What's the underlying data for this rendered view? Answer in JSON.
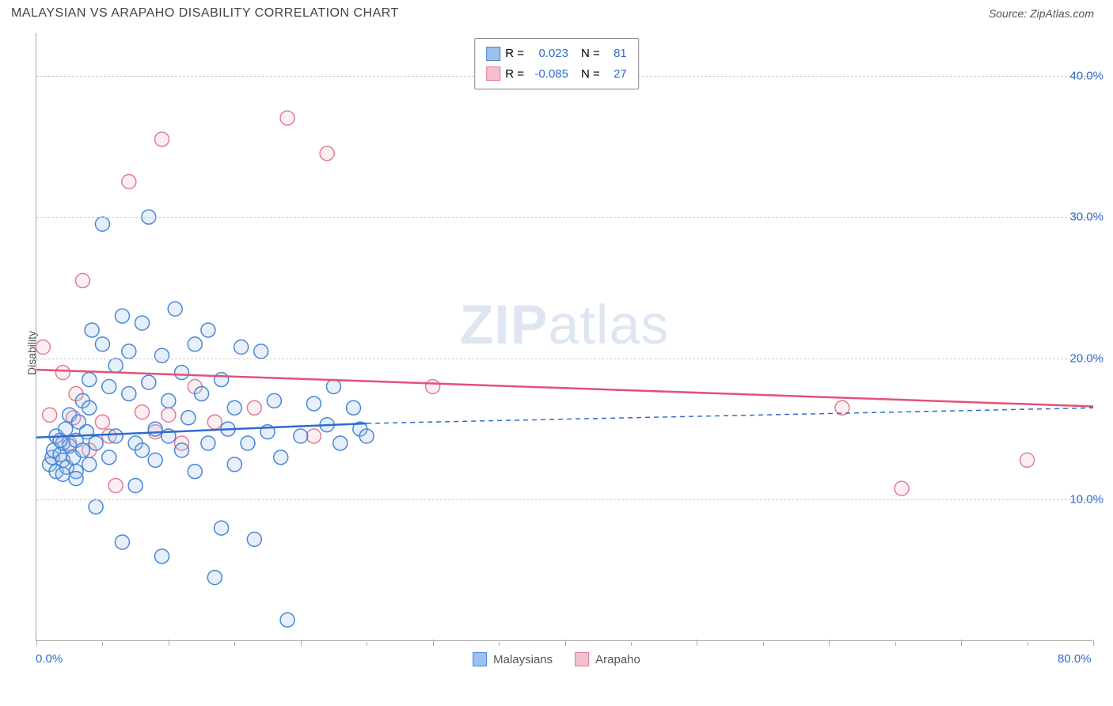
{
  "header": {
    "title": "MALAYSIAN VS ARAPAHO DISABILITY CORRELATION CHART",
    "source_label": "Source: ZipAtlas.com"
  },
  "watermark": {
    "zip": "ZIP",
    "atlas": "atlas"
  },
  "chart": {
    "type": "scatter",
    "background_color": "#ffffff",
    "grid_color": "#cccccc",
    "axis_color": "#aaaaaa",
    "ylabel": "Disability",
    "ylabel_fontsize": 14,
    "xlim": [
      0,
      80
    ],
    "ylim": [
      0,
      43
    ],
    "x_ticks_major": [
      0,
      10,
      20,
      30,
      40,
      50,
      60,
      70,
      80
    ],
    "x_ticks_minor": [
      5,
      15,
      25,
      35,
      45,
      55,
      65,
      75
    ],
    "x_tick_labels": [
      {
        "value": 0,
        "label": "0.0%",
        "color": "#2d6bd1"
      },
      {
        "value": 80,
        "label": "80.0%",
        "color": "#2d6bd1"
      }
    ],
    "y_gridlines": [
      10,
      20,
      30,
      40
    ],
    "y_tick_labels": [
      {
        "value": 10,
        "label": "10.0%",
        "color": "#2d6bd1"
      },
      {
        "value": 20,
        "label": "20.0%",
        "color": "#2d6bd1"
      },
      {
        "value": 30,
        "label": "30.0%",
        "color": "#2d6bd1"
      },
      {
        "value": 40,
        "label": "40.0%",
        "color": "#2d6bd1"
      }
    ],
    "marker_radius": 9,
    "marker_stroke_width": 1.5,
    "marker_fill_opacity": 0.25,
    "series": {
      "blue": {
        "label": "Malaysians",
        "fill": "#9cc1ec",
        "stroke": "#4a87d6",
        "R": "0.023",
        "N": "81",
        "trend": {
          "solid": {
            "x1": 0,
            "y1": 14.4,
            "x2": 25,
            "y2": 15.4
          },
          "dashed": {
            "x1": 25,
            "y1": 15.4,
            "x2": 80,
            "y2": 16.5
          },
          "color": "#2d6bd1",
          "width": 2.5
        },
        "points": [
          [
            1.0,
            12.5
          ],
          [
            1.2,
            13.0
          ],
          [
            1.3,
            13.5
          ],
          [
            1.5,
            12.0
          ],
          [
            1.5,
            14.5
          ],
          [
            1.8,
            13.2
          ],
          [
            2.0,
            12.8
          ],
          [
            2.0,
            14.0
          ],
          [
            2.2,
            15.0
          ],
          [
            2.3,
            12.3
          ],
          [
            2.5,
            13.8
          ],
          [
            2.5,
            16.0
          ],
          [
            2.8,
            13.0
          ],
          [
            3.0,
            14.2
          ],
          [
            3.0,
            12.0
          ],
          [
            3.2,
            15.5
          ],
          [
            3.5,
            17.0
          ],
          [
            3.5,
            13.5
          ],
          [
            3.8,
            14.8
          ],
          [
            4.0,
            18.5
          ],
          [
            4.0,
            12.5
          ],
          [
            4.2,
            22.0
          ],
          [
            4.5,
            14.0
          ],
          [
            4.5,
            9.5
          ],
          [
            5.0,
            21.0
          ],
          [
            5.0,
            29.5
          ],
          [
            5.5,
            13.0
          ],
          [
            5.5,
            18.0
          ],
          [
            6.0,
            14.5
          ],
          [
            6.0,
            19.5
          ],
          [
            6.5,
            23.0
          ],
          [
            6.5,
            7.0
          ],
          [
            7.0,
            17.5
          ],
          [
            7.0,
            20.5
          ],
          [
            7.5,
            14.0
          ],
          [
            7.5,
            11.0
          ],
          [
            8.0,
            22.5
          ],
          [
            8.0,
            13.5
          ],
          [
            8.5,
            18.3
          ],
          [
            8.5,
            30.0
          ],
          [
            9.0,
            15.0
          ],
          [
            9.0,
            12.8
          ],
          [
            9.5,
            20.2
          ],
          [
            9.5,
            6.0
          ],
          [
            10.0,
            14.5
          ],
          [
            10.0,
            17.0
          ],
          [
            10.5,
            23.5
          ],
          [
            11.0,
            13.5
          ],
          [
            11.0,
            19.0
          ],
          [
            11.5,
            15.8
          ],
          [
            12.0,
            21.0
          ],
          [
            12.0,
            12.0
          ],
          [
            12.5,
            17.5
          ],
          [
            13.0,
            14.0
          ],
          [
            13.0,
            22.0
          ],
          [
            13.5,
            4.5
          ],
          [
            14.0,
            18.5
          ],
          [
            14.0,
            8.0
          ],
          [
            14.5,
            15.0
          ],
          [
            15.0,
            16.5
          ],
          [
            15.0,
            12.5
          ],
          [
            15.5,
            20.8
          ],
          [
            16.0,
            14.0
          ],
          [
            16.5,
            7.2
          ],
          [
            17.0,
            20.5
          ],
          [
            17.5,
            14.8
          ],
          [
            18.0,
            17.0
          ],
          [
            18.5,
            13.0
          ],
          [
            19.0,
            1.5
          ],
          [
            20.0,
            14.5
          ],
          [
            21.0,
            16.8
          ],
          [
            22.0,
            15.3
          ],
          [
            22.5,
            18.0
          ],
          [
            23.0,
            14.0
          ],
          [
            24.0,
            16.5
          ],
          [
            24.5,
            15.0
          ],
          [
            25.0,
            14.5
          ],
          [
            2.0,
            11.8
          ],
          [
            3.0,
            11.5
          ],
          [
            4.0,
            16.5
          ],
          [
            1.8,
            14.2
          ]
        ]
      },
      "pink": {
        "label": "Arapaho",
        "fill": "#f5c0cd",
        "stroke": "#e37b96",
        "R": "-0.085",
        "N": "27",
        "trend": {
          "solid": {
            "x1": 0,
            "y1": 19.2,
            "x2": 80,
            "y2": 16.6
          },
          "color": "#e35177",
          "width": 2.5
        },
        "points": [
          [
            0.5,
            20.8
          ],
          [
            1.0,
            16.0
          ],
          [
            2.0,
            19.0
          ],
          [
            2.5,
            14.0
          ],
          [
            3.0,
            17.5
          ],
          [
            3.5,
            25.5
          ],
          [
            4.0,
            13.5
          ],
          [
            5.0,
            15.5
          ],
          [
            5.5,
            14.5
          ],
          [
            6.0,
            11.0
          ],
          [
            7.0,
            32.5
          ],
          [
            8.0,
            16.2
          ],
          [
            9.0,
            14.8
          ],
          [
            9.5,
            35.5
          ],
          [
            10.0,
            16.0
          ],
          [
            11.0,
            14.0
          ],
          [
            12.0,
            18.0
          ],
          [
            13.5,
            15.5
          ],
          [
            16.5,
            16.5
          ],
          [
            19.0,
            37.0
          ],
          [
            22.0,
            34.5
          ],
          [
            21.0,
            14.5
          ],
          [
            30.0,
            18.0
          ],
          [
            61.0,
            16.5
          ],
          [
            65.5,
            10.8
          ],
          [
            75.0,
            12.8
          ],
          [
            2.8,
            15.8
          ]
        ]
      }
    },
    "legend_top": {
      "text_color": "#555",
      "value_color": "#2d6bd1",
      "r_label": "R =",
      "n_label": "N ="
    },
    "legend_bottom_fontsize": 15
  }
}
